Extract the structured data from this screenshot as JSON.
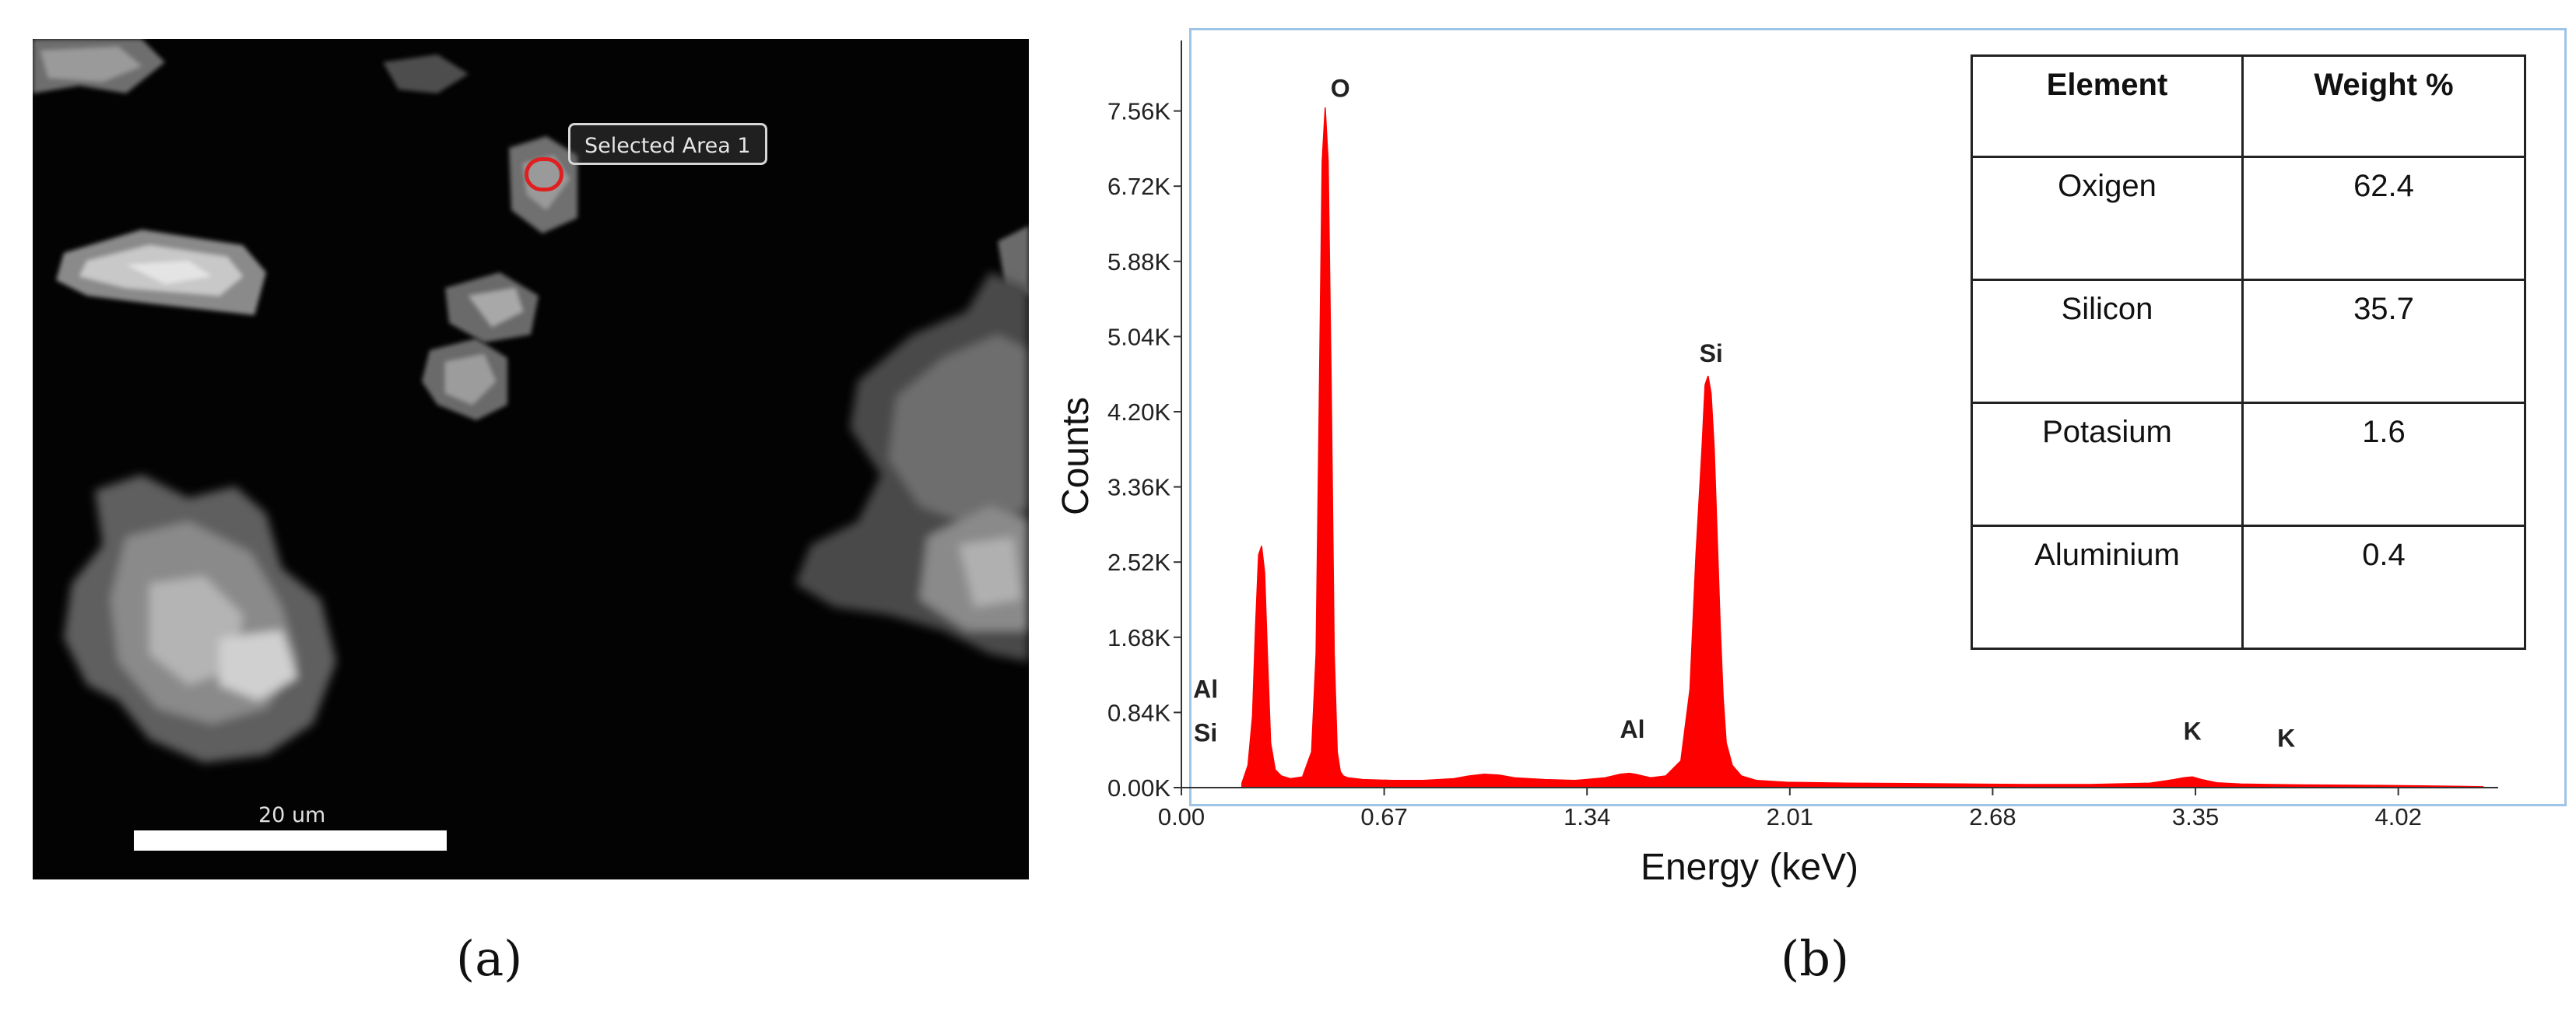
{
  "panel_a": {
    "caption": "(a)",
    "selected_area_label": "Selected Area 1",
    "scale_bar_label": "20 um"
  },
  "panel_b": {
    "caption": "(b)"
  },
  "table": {
    "headers": [
      "Element",
      "Weight %"
    ],
    "rows": [
      [
        "Oxigen",
        "62.4"
      ],
      [
        "Silicon",
        "35.7"
      ],
      [
        "Potasium",
        "1.6"
      ],
      [
        "Aluminium",
        "0.4"
      ]
    ]
  },
  "colors": {
    "spectrum": "#ff0000",
    "frame": "#9ec4e6",
    "marker": "#e02020"
  },
  "chart_data": {
    "type": "area",
    "title": "",
    "xlabel": "Energy (keV)",
    "ylabel": "Counts",
    "xlim": [
      0,
      4.35
    ],
    "ylim": [
      0,
      8000
    ],
    "x_ticks": [
      0.0,
      0.67,
      1.34,
      2.01,
      2.68,
      3.35,
      4.02
    ],
    "x_tick_labels": [
      "0.00",
      "0.67",
      "1.34",
      "2.01",
      "2.68",
      "3.35",
      "4.02"
    ],
    "y_ticks": [
      0,
      840,
      1680,
      2520,
      3360,
      4200,
      5040,
      5880,
      6720,
      7560
    ],
    "y_tick_labels": [
      "0.00K",
      "0.84K",
      "1.68K",
      "2.52K",
      "3.36K",
      "4.20K",
      "5.04K",
      "5.88K",
      "6.72K",
      "7.56K"
    ],
    "series": [
      {
        "x": [
          0.2,
          0.22,
          0.235,
          0.245,
          0.255,
          0.265,
          0.275,
          0.285,
          0.295,
          0.31,
          0.33,
          0.36,
          0.4,
          0.43,
          0.445,
          0.455,
          0.465,
          0.475,
          0.485,
          0.495,
          0.505,
          0.515,
          0.525,
          0.535,
          0.55,
          0.6,
          0.7,
          0.8,
          0.9,
          0.95,
          1.0,
          1.05,
          1.1,
          1.2,
          1.3,
          1.4,
          1.45,
          1.48,
          1.5,
          1.55,
          1.6,
          1.65,
          1.68,
          1.7,
          1.72,
          1.73,
          1.74,
          1.75,
          1.76,
          1.77,
          1.78,
          1.79,
          1.8,
          1.82,
          1.85,
          1.9,
          2.0,
          2.2,
          2.4,
          2.6,
          2.8,
          3.0,
          3.2,
          3.28,
          3.31,
          3.34,
          3.37,
          3.42,
          3.5,
          3.6,
          3.7,
          3.8,
          3.95,
          4.1,
          4.2,
          4.3
        ],
        "y": [
          50,
          250,
          800,
          1800,
          2600,
          2700,
          2400,
          1400,
          500,
          200,
          130,
          100,
          120,
          400,
          1500,
          4200,
          7000,
          7600,
          7000,
          4500,
          1500,
          400,
          180,
          130,
          110,
          90,
          80,
          80,
          100,
          130,
          150,
          140,
          110,
          90,
          80,
          110,
          150,
          160,
          150,
          110,
          130,
          300,
          1100,
          2600,
          3800,
          4500,
          4600,
          4400,
          3800,
          2800,
          1800,
          1000,
          500,
          250,
          130,
          80,
          60,
          50,
          45,
          40,
          35,
          35,
          50,
          90,
          110,
          120,
          90,
          55,
          40,
          35,
          30,
          28,
          25,
          20,
          15,
          10
        ]
      }
    ],
    "peak_labels": [
      {
        "text": "O",
        "x": 0.525,
        "y": 7560
      },
      {
        "text": "Si",
        "x": 1.75,
        "y": 4600
      },
      {
        "text": "Al",
        "x": 0.08,
        "y": 850
      },
      {
        "text": "Si",
        "x": 0.08,
        "y": 360
      },
      {
        "text": "Al",
        "x": 1.49,
        "y": 400
      },
      {
        "text": "K",
        "x": 3.34,
        "y": 380
      },
      {
        "text": "K",
        "x": 3.65,
        "y": 300
      }
    ],
    "grid": false,
    "legend": "none"
  }
}
